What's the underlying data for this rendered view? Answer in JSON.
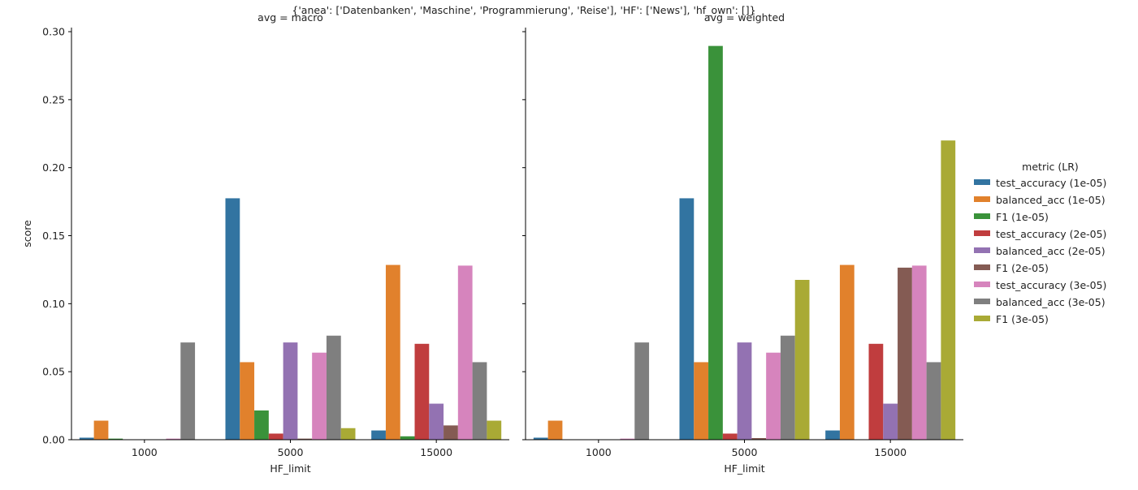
{
  "figure_title": "{'anea': ['Datenbanken', 'Maschine', 'Programmierung', 'Reise'], 'HF': ['News'], 'hf_own': []}",
  "legend": {
    "title": "metric (LR)"
  },
  "colors": {
    "test_accuracy (1e-05)": "#3274a1",
    "balanced_acc (1e-05)": "#e1812c",
    "F1 (1e-05)": "#3a923a",
    "test_accuracy (2e-05)": "#c03d3e",
    "balanced_acc (2e-05)": "#9372b2",
    "F1 (2e-05)": "#845b53",
    "test_accuracy (3e-05)": "#d684bd",
    "balanced_acc (3e-05)": "#7f7f7f",
    "F1 (3e-05)": "#a9aa35"
  },
  "chart_data": [
    {
      "type": "bar",
      "title": "avg = macro",
      "xlabel": "HF_limit",
      "ylabel": "score",
      "ylim": [
        0,
        0.303
      ],
      "yticks": [
        "0.00",
        "0.05",
        "0.10",
        "0.15",
        "0.20",
        "0.25",
        "0.30"
      ],
      "categories": [
        "1000",
        "5000",
        "15000"
      ],
      "series": [
        {
          "name": "test_accuracy (1e-05)",
          "values": [
            0.0015,
            0.1775,
            0.0068
          ]
        },
        {
          "name": "balanced_acc (1e-05)",
          "values": [
            0.014,
            0.057,
            0.1285
          ]
        },
        {
          "name": "F1 (1e-05)",
          "values": [
            0.0008,
            0.0215,
            0.0025
          ]
        },
        {
          "name": "test_accuracy (2e-05)",
          "values": [
            0,
            0.0045,
            0.0705
          ]
        },
        {
          "name": "balanced_acc (2e-05)",
          "values": [
            0,
            0.0715,
            0.0265
          ]
        },
        {
          "name": "F1 (2e-05)",
          "values": [
            0,
            0.0008,
            0.0105
          ]
        },
        {
          "name": "test_accuracy (3e-05)",
          "values": [
            0.0008,
            0.064,
            0.128
          ]
        },
        {
          "name": "balanced_acc (3e-05)",
          "values": [
            0.0715,
            0.0765,
            0.057
          ]
        },
        {
          "name": "F1 (3e-05)",
          "values": [
            0.0003,
            0.0085,
            0.014
          ]
        }
      ]
    },
    {
      "type": "bar",
      "title": "avg = weighted",
      "xlabel": "HF_limit",
      "ylabel": "",
      "ylim": [
        0,
        0.303
      ],
      "categories": [
        "1000",
        "5000",
        "15000"
      ],
      "series": [
        {
          "name": "test_accuracy (1e-05)",
          "values": [
            0.0015,
            0.1775,
            0.0068
          ]
        },
        {
          "name": "balanced_acc (1e-05)",
          "values": [
            0.014,
            0.057,
            0.1285
          ]
        },
        {
          "name": "F1 (1e-05)",
          "values": [
            0.0003,
            0.2895,
            0.0003
          ]
        },
        {
          "name": "test_accuracy (2e-05)",
          "values": [
            0,
            0.0045,
            0.0705
          ]
        },
        {
          "name": "balanced_acc (2e-05)",
          "values": [
            0,
            0.0715,
            0.0265
          ]
        },
        {
          "name": "F1 (2e-05)",
          "values": [
            0,
            0.0012,
            0.1265
          ]
        },
        {
          "name": "test_accuracy (3e-05)",
          "values": [
            0.0008,
            0.064,
            0.128
          ]
        },
        {
          "name": "balanced_acc (3e-05)",
          "values": [
            0.0715,
            0.0765,
            0.057
          ]
        },
        {
          "name": "F1 (3e-05)",
          "values": [
            0,
            0.1175,
            0.22
          ]
        }
      ]
    }
  ]
}
